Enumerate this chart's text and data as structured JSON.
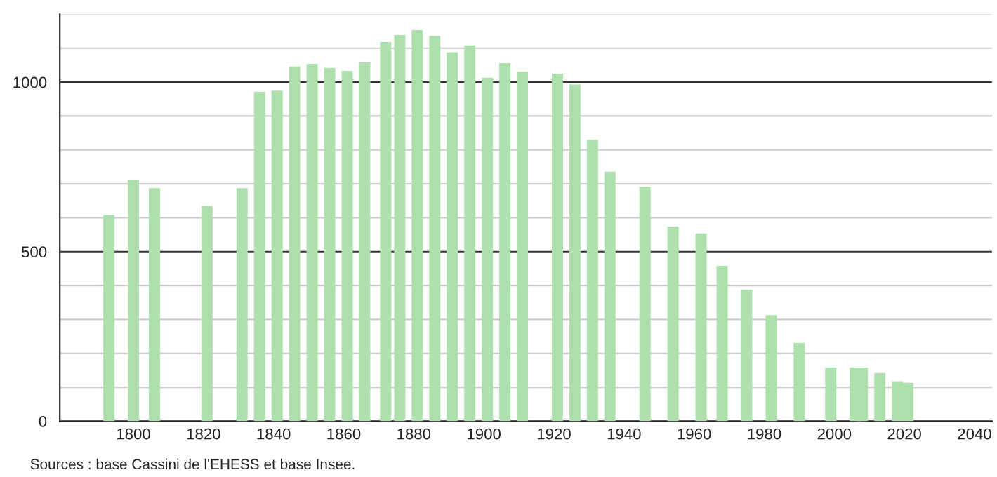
{
  "chart_data": {
    "type": "bar",
    "x": [
      1793,
      1800,
      1806,
      1821,
      1831,
      1836,
      1841,
      1846,
      1851,
      1856,
      1861,
      1866,
      1872,
      1876,
      1881,
      1886,
      1891,
      1896,
      1901,
      1906,
      1911,
      1921,
      1926,
      1931,
      1936,
      1946,
      1954,
      1962,
      1968,
      1975,
      1982,
      1990,
      1999,
      2006,
      2008,
      2013,
      2018,
      2021
    ],
    "values": [
      608,
      712,
      687,
      635,
      687,
      971,
      975,
      1046,
      1054,
      1042,
      1033,
      1058,
      1118,
      1139,
      1153,
      1136,
      1088,
      1108,
      1013,
      1056,
      1031,
      1025,
      993,
      830,
      736,
      692,
      574,
      554,
      458,
      388,
      313,
      231,
      158,
      158,
      158,
      142,
      118,
      113
    ],
    "color": "#aee0ae",
    "xlim": [
      1779,
      2045
    ],
    "xticks": [
      1800,
      1820,
      1840,
      1860,
      1880,
      1900,
      1920,
      1940,
      1960,
      1980,
      2000,
      2020,
      2040
    ],
    "ylim": [
      0,
      1200
    ],
    "yticks": [
      0,
      {
        "value": 100,
        "label": null
      },
      {
        "value": 200,
        "label": null
      },
      {
        "value": 300,
        "label": null
      },
      {
        "value": 400,
        "label": null
      },
      500,
      {
        "value": 600,
        "label": null
      },
      {
        "value": 700,
        "label": null
      },
      {
        "value": 800,
        "label": null
      },
      {
        "value": 900,
        "label": null
      },
      1000,
      {
        "value": 1100,
        "label": null
      },
      {
        "value": 1200,
        "label": null
      }
    ],
    "grid": "y",
    "legend": false,
    "annotations": [
      "Sources : base Cassini de l'EHESS et base Insee."
    ]
  }
}
